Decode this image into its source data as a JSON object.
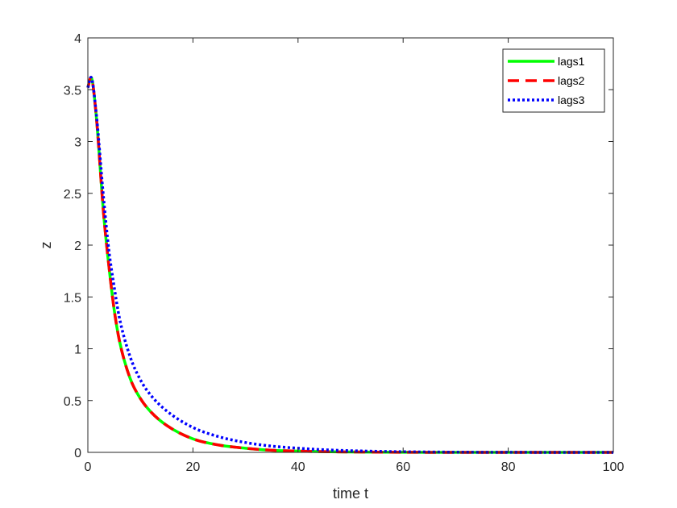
{
  "chart_data": {
    "type": "line",
    "title": "",
    "xlabel": "time t",
    "ylabel": "z",
    "xlim": [
      0,
      100
    ],
    "ylim": [
      0,
      4
    ],
    "xticks": [
      0,
      20,
      40,
      60,
      80,
      100
    ],
    "yticks": [
      0,
      0.5,
      1,
      1.5,
      2,
      2.5,
      3,
      3.5,
      4
    ],
    "xtick_labels": [
      "0",
      "20",
      "40",
      "60",
      "80",
      "100"
    ],
    "ytick_labels": [
      "0",
      "0.5",
      "1",
      "1.5",
      "2",
      "2.5",
      "3",
      "3.5",
      "4"
    ],
    "grid": false,
    "box": true,
    "legend_position": "top-right",
    "series": [
      {
        "name": "lags1",
        "color": "#00ff00",
        "style": "solid",
        "x": [
          0,
          0.6,
          1.5,
          3,
          4,
          5,
          6,
          8,
          10,
          12,
          15,
          20,
          25,
          30,
          35,
          40,
          45,
          50,
          60,
          70,
          80,
          90,
          100
        ],
        "y": [
          3.52,
          3.62,
          3.3,
          2.3,
          1.8,
          1.38,
          1.08,
          0.72,
          0.52,
          0.39,
          0.26,
          0.13,
          0.07,
          0.04,
          0.02,
          0.012,
          0.007,
          0.004,
          0.001,
          0,
          0,
          0,
          0
        ]
      },
      {
        "name": "lags2",
        "color": "#ff0000",
        "style": "dashed",
        "x": [
          0,
          0.6,
          1.5,
          3,
          4,
          5,
          6,
          8,
          10,
          12,
          15,
          20,
          25,
          30,
          35,
          40,
          45,
          50,
          60,
          70,
          80,
          90,
          100
        ],
        "y": [
          3.52,
          3.62,
          3.3,
          2.3,
          1.8,
          1.38,
          1.08,
          0.72,
          0.52,
          0.39,
          0.26,
          0.13,
          0.07,
          0.04,
          0.02,
          0.012,
          0.007,
          0.004,
          0.001,
          0,
          0,
          0,
          0
        ]
      },
      {
        "name": "lags3",
        "color": "#0000ff",
        "style": "dotted",
        "x": [
          0,
          0.6,
          1.5,
          3,
          4,
          5,
          6,
          8,
          10,
          12,
          15,
          20,
          25,
          30,
          35,
          40,
          45,
          50,
          60,
          70,
          80,
          90,
          100
        ],
        "y": [
          3.52,
          3.62,
          3.32,
          2.45,
          1.95,
          1.6,
          1.3,
          0.93,
          0.7,
          0.55,
          0.4,
          0.24,
          0.15,
          0.095,
          0.06,
          0.04,
          0.025,
          0.016,
          0.006,
          0.002,
          0.001,
          0,
          0
        ]
      }
    ]
  }
}
